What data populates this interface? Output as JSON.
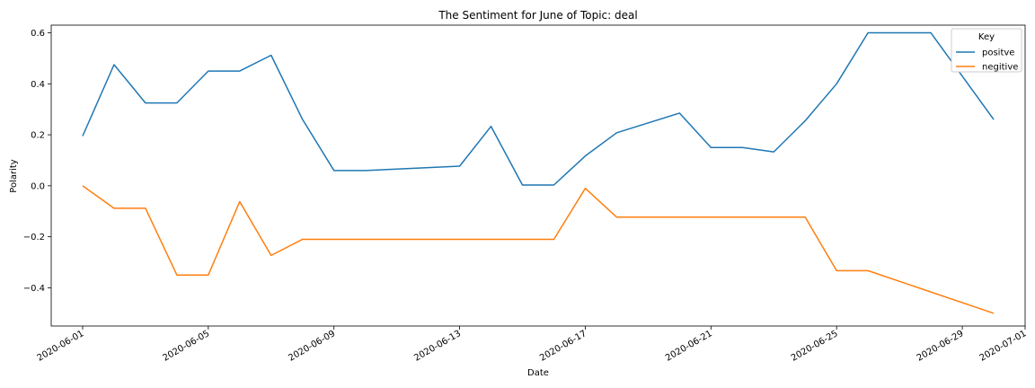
{
  "chart_data": {
    "type": "line",
    "title": "The Sentiment for June of Topic: deal",
    "xlabel": "Date",
    "ylabel": "Polarity",
    "xlim": [
      "2020-05-31",
      "2020-07-01"
    ],
    "ylim": [
      -0.55,
      0.63
    ],
    "x_ticks": [
      "2020-06-01",
      "2020-06-05",
      "2020-06-09",
      "2020-06-13",
      "2020-06-17",
      "2020-06-21",
      "2020-06-25",
      "2020-06-29",
      "2020-07-01"
    ],
    "y_ticks": [
      "−0.4",
      "−0.2",
      "0.0",
      "0.2",
      "0.4",
      "0.6"
    ],
    "y_tick_values": [
      -0.4,
      -0.2,
      0.0,
      0.2,
      0.4,
      0.6
    ],
    "grid": false,
    "legend": {
      "title": "Key",
      "placement": "top-right"
    },
    "series": [
      {
        "name": "positve",
        "color": "#1f77b4",
        "points": [
          [
            "2020-06-01",
            0.195
          ],
          [
            "2020-06-02",
            0.475
          ],
          [
            "2020-06-03",
            0.325
          ],
          [
            "2020-06-04",
            0.325
          ],
          [
            "2020-06-05",
            0.45
          ],
          [
            "2020-06-06",
            0.45
          ],
          [
            "2020-06-07",
            0.512
          ],
          [
            "2020-06-08",
            0.26
          ],
          [
            "2020-06-09",
            0.06
          ],
          [
            "2020-06-10",
            0.06
          ],
          [
            "2020-06-13",
            0.077
          ],
          [
            "2020-06-14",
            0.233
          ],
          [
            "2020-06-15",
            0.003
          ],
          [
            "2020-06-16",
            0.003
          ],
          [
            "2020-06-17",
            0.117
          ],
          [
            "2020-06-18",
            0.208
          ],
          [
            "2020-06-20",
            0.285
          ],
          [
            "2020-06-21",
            0.15
          ],
          [
            "2020-06-22",
            0.15
          ],
          [
            "2020-06-23",
            0.133
          ],
          [
            "2020-06-24",
            0.255
          ],
          [
            "2020-06-25",
            0.4
          ],
          [
            "2020-06-26",
            0.6
          ],
          [
            "2020-06-28",
            0.6
          ],
          [
            "2020-06-30",
            0.26
          ]
        ]
      },
      {
        "name": "negitive",
        "color": "#ff7f0e",
        "points": [
          [
            "2020-06-01",
            0.0
          ],
          [
            "2020-06-02",
            -0.088
          ],
          [
            "2020-06-03",
            -0.088
          ],
          [
            "2020-06-04",
            -0.35
          ],
          [
            "2020-06-05",
            -0.35
          ],
          [
            "2020-06-06",
            -0.062
          ],
          [
            "2020-06-07",
            -0.273
          ],
          [
            "2020-06-08",
            -0.21
          ],
          [
            "2020-06-16",
            -0.21
          ],
          [
            "2020-06-17",
            -0.01
          ],
          [
            "2020-06-18",
            -0.123
          ],
          [
            "2020-06-24",
            -0.123
          ],
          [
            "2020-06-25",
            -0.333
          ],
          [
            "2020-06-26",
            -0.333
          ],
          [
            "2020-06-30",
            -0.5
          ]
        ]
      }
    ]
  }
}
